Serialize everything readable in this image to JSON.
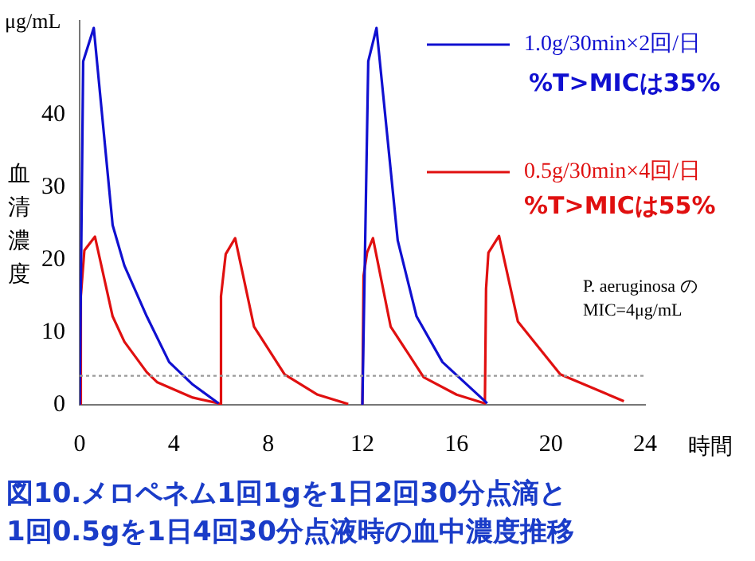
{
  "chart_data": {
    "type": "line",
    "title": "図10.メロペネム1回1gを1日2回30分点滴と\n1回0.5gを1日4回30分点液時の血中濃度推移",
    "ylabel": "血清濃度",
    "xlabel": "時間",
    "annotations": [
      "μg/mL",
      "%T>MICは35%",
      "%T>MICは55%",
      "P. aeruginosa の\nMIC=4μg/mL"
    ],
    "series": [
      {
        "name": "1.0g/30min×2回/日",
        "color": "#1010d0",
        "x": [
          0,
          0.15,
          0.6,
          1.4,
          1.9,
          2.85,
          3.8,
          4.8,
          5.9,
          9,
          12,
          12.25,
          12.6,
          13.5,
          14.3,
          15.4,
          17.3
        ],
        "values": [
          0,
          47.4,
          52,
          24.8,
          19.2,
          12.2,
          5.9,
          2.8,
          0.2,
          null,
          0,
          47.4,
          52,
          22.7,
          12.2,
          5.9,
          0.2
        ]
      },
      {
        "name": "0.5g/30min×4回/日",
        "color": "#e01010",
        "x": [
          0,
          0.05,
          0.2,
          0.65,
          1.4,
          1.9,
          2.85,
          3.3,
          4.8,
          5.9,
          5.95,
          6.0,
          6.2,
          6.6,
          7.4,
          8.7,
          10.1,
          11.4,
          11.7,
          12,
          12.05,
          12.2,
          12.45,
          13.2,
          14.6,
          16,
          17.2,
          17.25,
          17.35,
          17.8,
          18.6,
          20.4,
          23.1
        ],
        "values": [
          0,
          15,
          21.3,
          23.2,
          12.2,
          8.7,
          4.5,
          3.1,
          1,
          0.2,
          0,
          15,
          20.8,
          23,
          10.8,
          4.2,
          1.4,
          0.1,
          null,
          0,
          17.8,
          21,
          23,
          10.8,
          3.8,
          1.4,
          0.2,
          16,
          21,
          23.3,
          11.5,
          4.2,
          0.5
        ]
      }
    ],
    "xlim": [
      0,
      24
    ],
    "xticks": [
      0,
      4,
      8,
      12,
      16,
      20,
      24
    ],
    "ylim": [
      0,
      53
    ],
    "yticks": [
      0,
      10,
      20,
      30,
      40
    ],
    "ref_lines": [
      {
        "axis": "y",
        "value": 4,
        "label": null,
        "color": "#999999",
        "line_style": "dotted"
      }
    ],
    "legend": "top right",
    "grid": false,
    "marker": "none",
    "line_style": "solid"
  }
}
